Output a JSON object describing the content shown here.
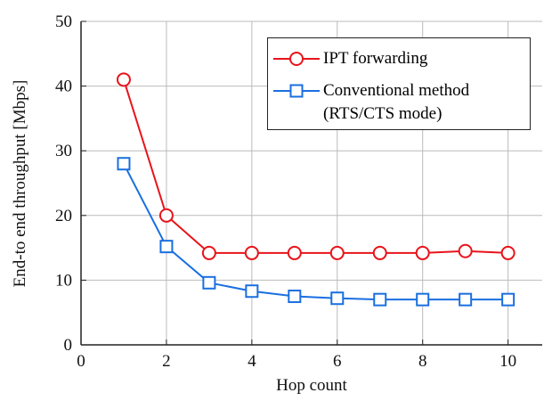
{
  "chart_data": {
    "type": "line",
    "xlabel": "Hop count",
    "ylabel": "End-to end throughput [Mbps]",
    "x": [
      1,
      2,
      3,
      4,
      5,
      6,
      7,
      8,
      9,
      10
    ],
    "series": [
      {
        "name": "IPT forwarding",
        "color": "#e8141b",
        "marker": "circle",
        "values": [
          41,
          20,
          14.2,
          14.2,
          14.2,
          14.2,
          14.2,
          14.2,
          14.5,
          14.2
        ]
      },
      {
        "name": "Conventional method (RTS/CTS mode)",
        "color": "#1a6fe0",
        "marker": "square",
        "values": [
          28,
          15.2,
          9.6,
          8.3,
          7.5,
          7.2,
          7,
          7,
          7,
          7
        ]
      }
    ],
    "xlim": [
      0,
      10.8
    ],
    "xticks": [
      0,
      2,
      4,
      6,
      8,
      10
    ],
    "ylim": [
      0,
      50
    ],
    "yticks": [
      0,
      10,
      20,
      30,
      40,
      50
    ],
    "grid": true,
    "legend": "upper right"
  }
}
